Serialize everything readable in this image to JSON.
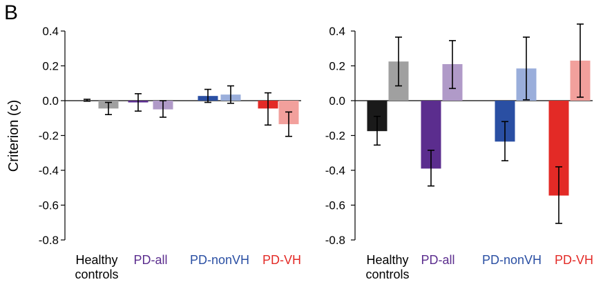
{
  "panel_label": "B",
  "colors": {
    "healthy_1": "#1a1a1a",
    "healthy_2": "#a0a0a0",
    "pdall_1": "#5b2d8e",
    "pdall_2": "#b09ac8",
    "pdnonvh_1": "#2a4fa3",
    "pdnonvh_2": "#9aaedb",
    "pdvh_1": "#e32a26",
    "pdvh_2": "#f2a09c"
  },
  "chart_data": [
    {
      "type": "bar",
      "ylabel": "Criterion (c)",
      "ylim": [
        -0.8,
        0.4
      ],
      "yticks": [
        "0.4",
        "0.2",
        "0.0",
        "-0.2",
        "-0.4",
        "-0.6",
        "-0.8"
      ],
      "groups": [
        {
          "name": "Healthy controls",
          "label_lines": [
            "Healthy",
            "controls"
          ],
          "label_color": "#000000"
        },
        {
          "name": "PD-all",
          "label_lines": [
            "PD-all"
          ],
          "label_color": "#5b2d8e"
        },
        {
          "name": "PD-nonVH",
          "label_lines": [
            "PD-nonVH"
          ],
          "label_color": "#2a4fa3"
        },
        {
          "name": "PD-VH",
          "label_lines": [
            "PD-VH"
          ],
          "label_color": "#e32a26"
        }
      ],
      "bars": [
        {
          "group": "Healthy controls",
          "value": 0.0,
          "err_low": -0.003,
          "err_high": 0.008,
          "color": "#1a1a1a"
        },
        {
          "group": "Healthy controls",
          "value": -0.045,
          "err_low": -0.08,
          "err_high": -0.01,
          "color": "#a0a0a0"
        },
        {
          "group": "PD-all",
          "value": -0.01,
          "err_low": -0.06,
          "err_high": 0.04,
          "color": "#5b2d8e"
        },
        {
          "group": "PD-all",
          "value": -0.05,
          "err_low": -0.095,
          "err_high": 0.0,
          "color": "#b09ac8"
        },
        {
          "group": "PD-nonVH",
          "value": 0.027,
          "err_low": -0.01,
          "err_high": 0.065,
          "color": "#2a4fa3"
        },
        {
          "group": "PD-nonVH",
          "value": 0.035,
          "err_low": -0.015,
          "err_high": 0.085,
          "color": "#9aaedb"
        },
        {
          "group": "PD-VH",
          "value": -0.045,
          "err_low": -0.14,
          "err_high": 0.045,
          "color": "#e32a26"
        },
        {
          "group": "PD-VH",
          "value": -0.135,
          "err_low": -0.205,
          "err_high": -0.065,
          "color": "#f2a09c"
        }
      ]
    },
    {
      "type": "bar",
      "ylabel": "",
      "ylim": [
        -0.8,
        0.4
      ],
      "yticks": [
        "0.4",
        "0.2",
        "0.0",
        "-0.2",
        "-0.4",
        "-0.6",
        "-0.8"
      ],
      "groups": [
        {
          "name": "Healthy controls",
          "label_lines": [
            "Healthy",
            "controls"
          ],
          "label_color": "#000000"
        },
        {
          "name": "PD-all",
          "label_lines": [
            "PD-all"
          ],
          "label_color": "#5b2d8e"
        },
        {
          "name": "PD-nonVH",
          "label_lines": [
            "PD-nonVH"
          ],
          "label_color": "#2a4fa3"
        },
        {
          "name": "PD-VH",
          "label_lines": [
            "PD-VH"
          ],
          "label_color": "#e32a26"
        }
      ],
      "bars": [
        {
          "group": "Healthy controls",
          "value": -0.175,
          "err_low": -0.255,
          "err_high": -0.09,
          "color": "#1a1a1a"
        },
        {
          "group": "Healthy controls",
          "value": 0.225,
          "err_low": 0.085,
          "err_high": 0.365,
          "color": "#a0a0a0"
        },
        {
          "group": "PD-all",
          "value": -0.39,
          "err_low": -0.49,
          "err_high": -0.285,
          "color": "#5b2d8e"
        },
        {
          "group": "PD-all",
          "value": 0.21,
          "err_low": 0.07,
          "err_high": 0.345,
          "color": "#b09ac8"
        },
        {
          "group": "PD-nonVH",
          "value": -0.235,
          "err_low": -0.345,
          "err_high": -0.12,
          "color": "#2a4fa3"
        },
        {
          "group": "PD-nonVH",
          "value": 0.185,
          "err_low": 0.005,
          "err_high": 0.365,
          "color": "#9aaedb"
        },
        {
          "group": "PD-VH",
          "value": -0.545,
          "err_low": -0.705,
          "err_high": -0.38,
          "color": "#e32a26"
        },
        {
          "group": "PD-VH",
          "value": 0.23,
          "err_low": 0.02,
          "err_high": 0.44,
          "color": "#f2a09c"
        }
      ]
    }
  ]
}
